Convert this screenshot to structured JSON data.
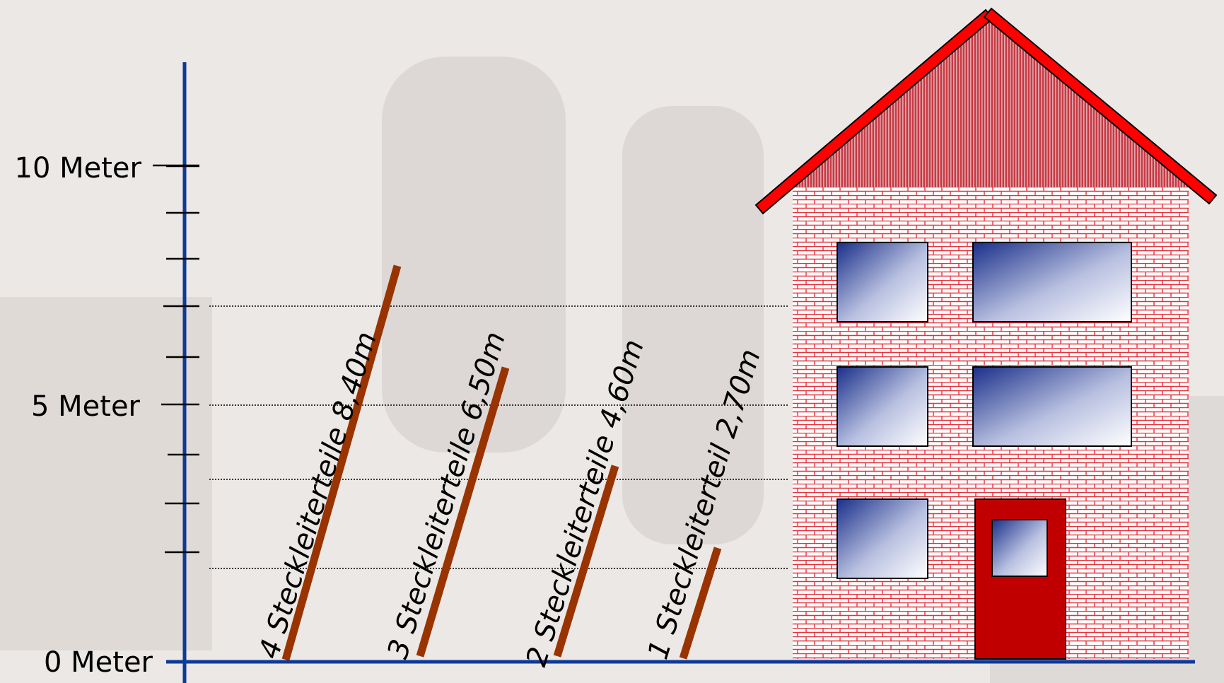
{
  "scale": {
    "labels": [
      {
        "value": 10,
        "text": "10 Meter"
      },
      {
        "value": 5,
        "text": "5 Meter"
      },
      {
        "value": 0,
        "text": "0 Meter"
      }
    ]
  },
  "ladders": [
    {
      "parts": 4,
      "label": "4 Steckleiterteile 8,40m"
    },
    {
      "parts": 3,
      "label": "3 Steckleiterteile 6,50m"
    },
    {
      "parts": 2,
      "label": "2 Steckleiterteile 4,60m"
    },
    {
      "parts": 1,
      "label": "1 Steckleiterteil  2,70m"
    }
  ],
  "colors": {
    "axis": "#0d3a99",
    "ladder": "#993300",
    "roof_edge": "#ff0000",
    "wall_brick": "#e8303a",
    "door": "#c00000",
    "window_dark": "#1a2f8a",
    "window_light": "#ffffff"
  }
}
